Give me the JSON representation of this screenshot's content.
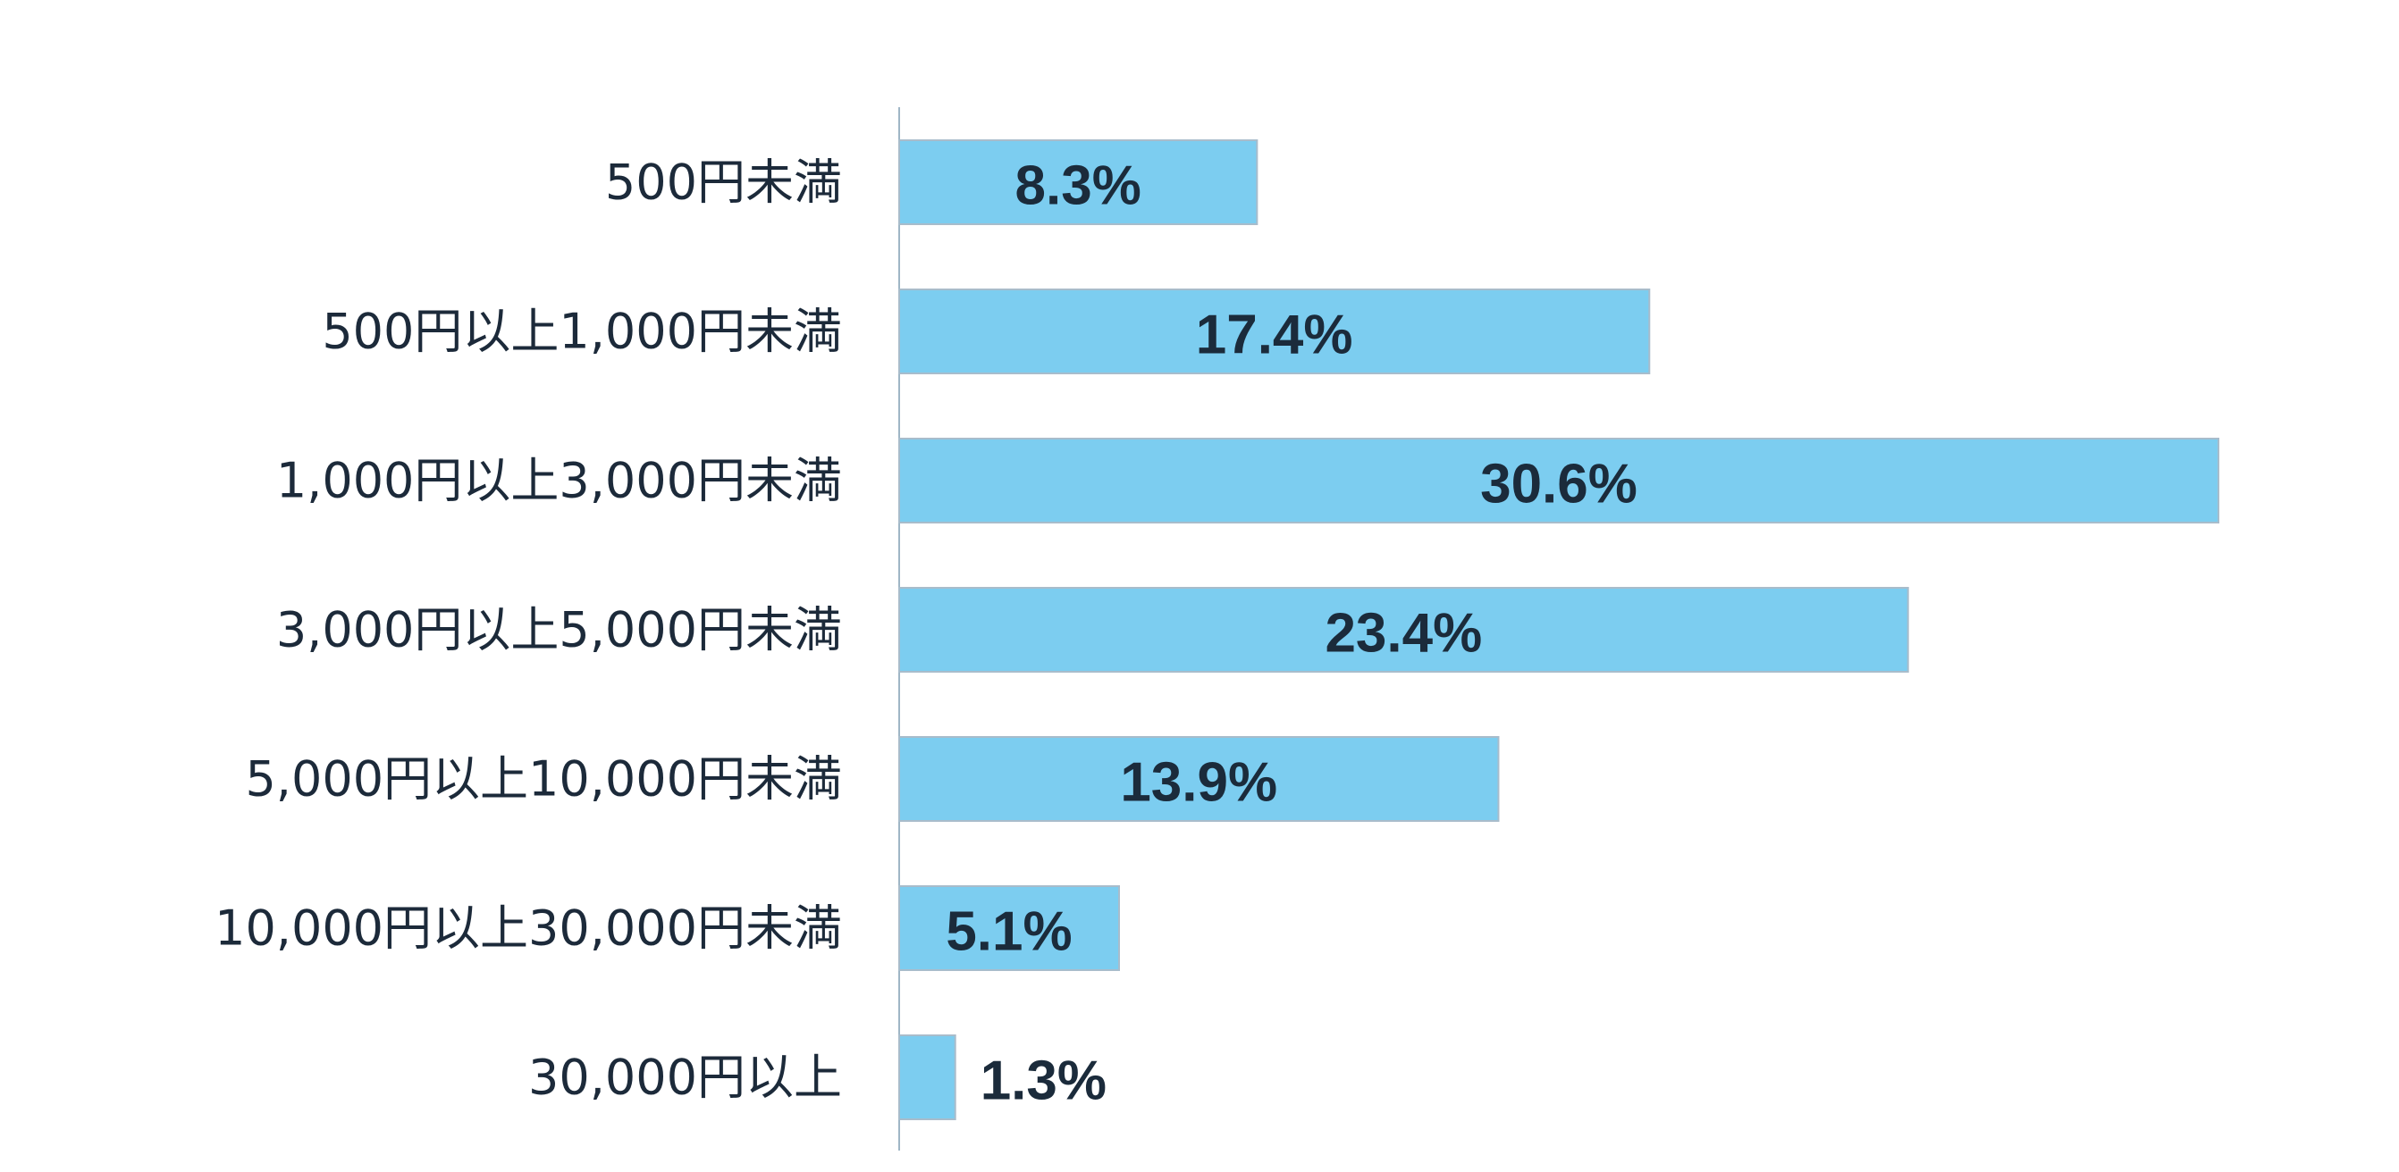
{
  "chart_data": {
    "type": "bar",
    "orientation": "horizontal",
    "categories": [
      "500円未満",
      "500円以上1,000円未満",
      "1,000円以上3,000円未満",
      "3,000円以上5,000円未満",
      "5,000円以上10,000円未満",
      "10,000円以上30,000円未満",
      "30,000円以上"
    ],
    "values": [
      8.3,
      17.4,
      30.6,
      23.4,
      13.9,
      5.1,
      1.3
    ],
    "value_labels": [
      "8.3%",
      "17.4%",
      "30.6%",
      "23.4%",
      "13.9%",
      "5.1%",
      "1.3%"
    ],
    "unit": "%",
    "title": "",
    "xlabel": "",
    "ylabel": "",
    "xlim": [
      0,
      30.6
    ],
    "grid": false,
    "legend": "none",
    "colors": {
      "bar_fill": "#7ccdf0",
      "bar_stroke": "#a8bccb",
      "axis": "#9fb6c6",
      "text": "#1c2a3a"
    }
  }
}
